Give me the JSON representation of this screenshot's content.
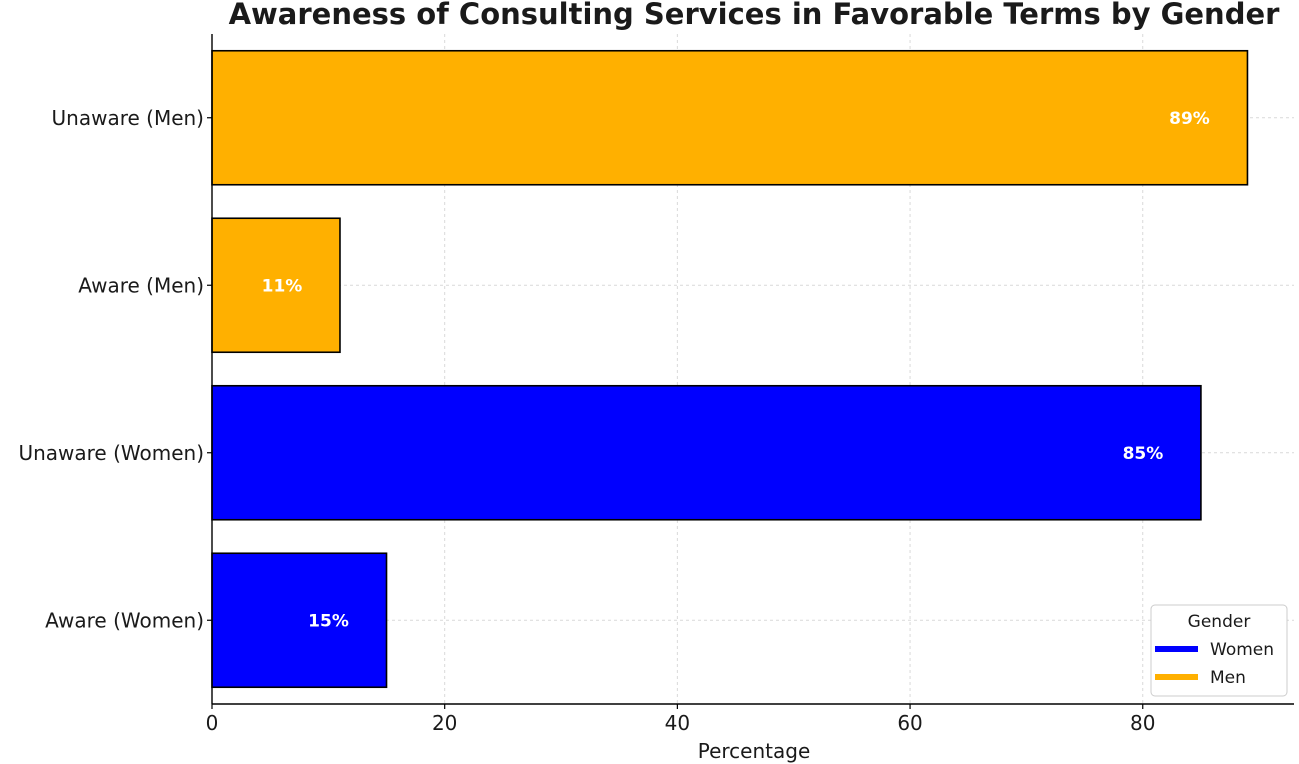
{
  "chart_data": {
    "type": "bar",
    "orientation": "horizontal",
    "title": "Awareness of Consulting Services in Favorable Terms by Gender",
    "xlabel": "Percentage",
    "ylabel": "",
    "xlim": [
      0,
      93
    ],
    "xticks": [
      0,
      20,
      40,
      60,
      80
    ],
    "grid": true,
    "categories": [
      "Aware (Women)",
      "Unaware (Women)",
      "Aware (Men)",
      "Unaware (Men)"
    ],
    "values": [
      15,
      85,
      11,
      89
    ],
    "data_labels": [
      "15%",
      "85%",
      "11%",
      "89%"
    ],
    "bar_series": [
      "Women",
      "Women",
      "Men",
      "Men"
    ],
    "legend": {
      "title": "Gender",
      "placement": "bottom-right",
      "entries": [
        {
          "name": "Women",
          "color": "#0000ff"
        },
        {
          "name": "Men",
          "color": "#ffb000"
        }
      ]
    }
  }
}
